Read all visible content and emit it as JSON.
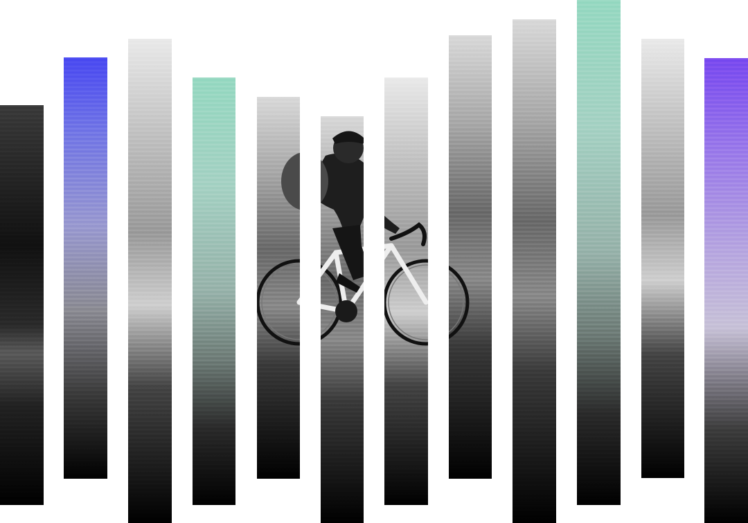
{
  "image": {
    "subject": "cyclist",
    "subject_icon": "bicycle-icon",
    "colors": {
      "background": "#ffffff",
      "blue_tint": "#4a4af2",
      "green_tint": "#97d9c2",
      "purple_tint": "#7a4af0",
      "road": "#000000"
    }
  }
}
